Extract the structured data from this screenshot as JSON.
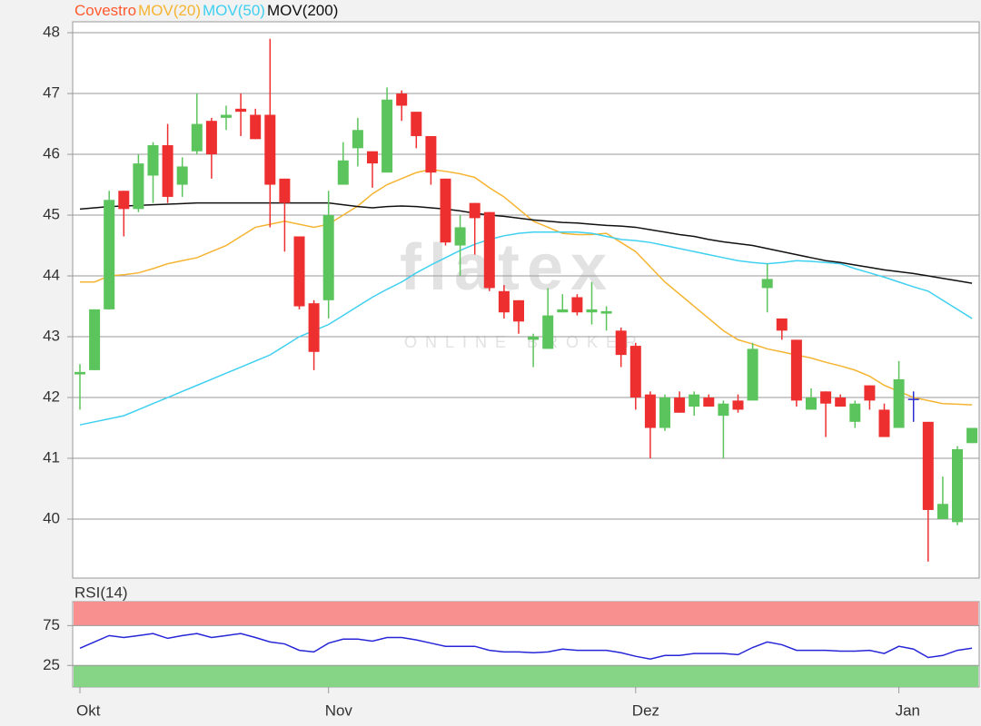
{
  "chart_data": [
    {
      "type": "candlestick",
      "name": "Covestro",
      "name_color": "#ff5a2e",
      "watermark": {
        "title": "flatex",
        "subtitle": "ONLINE BROKER"
      },
      "categories": [
        "Okt",
        null,
        null,
        null,
        null,
        null,
        null,
        null,
        null,
        null,
        null,
        null,
        null,
        null,
        null,
        null,
        null,
        "Nov",
        null,
        null,
        null,
        null,
        null,
        null,
        null,
        null,
        null,
        null,
        null,
        null,
        null,
        null,
        null,
        null,
        null,
        null,
        null,
        null,
        "Dez",
        null,
        null,
        null,
        null,
        null,
        null,
        null,
        null,
        null,
        null,
        null,
        null,
        null,
        null,
        null,
        null,
        null,
        "Jan",
        null,
        null,
        null,
        null,
        null
      ],
      "open": [
        42.38,
        42.45,
        43.45,
        45.4,
        45.1,
        45.65,
        46.15,
        45.5,
        46.05,
        46.55,
        46.6,
        46.75,
        46.65,
        46.65,
        45.6,
        44.65,
        43.55,
        43.6,
        45.5,
        46.1,
        46.05,
        45.7,
        47.0,
        46.7,
        46.3,
        45.6,
        44.5,
        45.2,
        45.05,
        43.75,
        43.6,
        42.95,
        42.8,
        43.4,
        43.65,
        43.4,
        43.38,
        43.1,
        42.85,
        42.05,
        41.5,
        42.0,
        41.85,
        42.0,
        41.7,
        41.95,
        41.95,
        43.8,
        43.3,
        42.95,
        41.8,
        42.1,
        42.0,
        41.6,
        42.2,
        41.8,
        41.5,
        41.98,
        41.6,
        40.0,
        39.95,
        41.25
      ],
      "high": [
        42.55,
        43.45,
        45.4,
        45.4,
        46.0,
        46.2,
        46.5,
        45.95,
        47.0,
        46.6,
        46.8,
        47.0,
        46.75,
        47.9,
        45.6,
        44.65,
        43.6,
        45.4,
        46.2,
        46.6,
        46.05,
        47.1,
        47.05,
        46.7,
        46.3,
        45.6,
        45.0,
        45.2,
        45.05,
        43.85,
        43.6,
        43.05,
        43.8,
        43.7,
        43.7,
        43.9,
        43.5,
        43.15,
        42.9,
        42.1,
        42.05,
        42.1,
        42.1,
        42.05,
        41.95,
        42.05,
        42.9,
        44.2,
        43.3,
        42.95,
        42.15,
        42.1,
        42.05,
        41.95,
        42.2,
        41.9,
        42.6,
        42.1,
        41.6,
        40.7,
        41.2,
        41.5
      ],
      "low": [
        41.8,
        42.45,
        43.45,
        44.65,
        45.05,
        45.2,
        45.2,
        45.3,
        46.0,
        45.6,
        46.4,
        46.3,
        46.25,
        44.8,
        44.4,
        43.45,
        42.45,
        43.3,
        45.5,
        45.8,
        45.45,
        45.7,
        46.55,
        46.1,
        45.5,
        44.5,
        44.0,
        44.35,
        43.75,
        43.3,
        43.05,
        42.5,
        42.8,
        43.4,
        43.35,
        43.2,
        43.1,
        42.5,
        41.8,
        41.0,
        41.45,
        41.75,
        41.7,
        41.85,
        41.0,
        41.75,
        41.95,
        43.4,
        42.95,
        41.85,
        41.8,
        41.35,
        41.85,
        41.5,
        41.8,
        41.35,
        41.5,
        41.6,
        39.3,
        40.0,
        39.9,
        41.25
      ],
      "close": [
        42.42,
        43.45,
        45.25,
        45.1,
        45.85,
        46.15,
        45.3,
        45.8,
        46.5,
        46.0,
        46.65,
        46.7,
        46.25,
        45.5,
        45.2,
        43.5,
        42.75,
        45.0,
        45.9,
        46.4,
        45.85,
        46.9,
        46.8,
        46.3,
        45.7,
        44.55,
        44.8,
        44.95,
        43.8,
        43.4,
        43.25,
        43.0,
        43.35,
        43.45,
        43.4,
        43.45,
        43.42,
        42.7,
        42.0,
        41.5,
        42.0,
        41.75,
        42.05,
        41.85,
        41.9,
        41.8,
        42.8,
        43.95,
        43.1,
        41.95,
        42.0,
        41.9,
        41.85,
        41.9,
        41.95,
        41.35,
        42.3,
        41.98,
        40.15,
        40.25,
        41.15,
        41.5
      ],
      "up_color": "#5cc45c",
      "down_color": "#ee2f2f",
      "doji_color": "#2a2ad0",
      "series": [
        {
          "name": "MOV(20)",
          "color": "#f5b432",
          "values": [
            43.9,
            43.9,
            44.0,
            44.02,
            44.05,
            44.12,
            44.2,
            44.25,
            44.3,
            44.4,
            44.5,
            44.65,
            44.8,
            44.85,
            44.9,
            44.85,
            44.8,
            44.85,
            45.0,
            45.15,
            45.35,
            45.5,
            45.6,
            45.7,
            45.75,
            45.72,
            45.68,
            45.62,
            45.45,
            45.3,
            45.1,
            44.9,
            44.8,
            44.7,
            44.68,
            44.68,
            44.7,
            44.55,
            44.4,
            44.15,
            43.9,
            43.7,
            43.5,
            43.3,
            43.1,
            42.95,
            42.88,
            42.8,
            42.75,
            42.7,
            42.65,
            42.58,
            42.52,
            42.45,
            42.35,
            42.2,
            42.1,
            42.0,
            41.95,
            41.9,
            41.89,
            41.88
          ]
        },
        {
          "name": "MOV(50)",
          "color": "#3fd0f0",
          "values": [
            41.55,
            41.6,
            41.65,
            41.7,
            41.8,
            41.9,
            42.0,
            42.1,
            42.2,
            42.3,
            42.4,
            42.5,
            42.6,
            42.7,
            42.85,
            43.0,
            43.1,
            43.2,
            43.35,
            43.5,
            43.65,
            43.78,
            43.9,
            44.05,
            44.18,
            44.3,
            44.42,
            44.52,
            44.6,
            44.66,
            44.7,
            44.72,
            44.72,
            44.72,
            44.72,
            44.7,
            44.65,
            44.6,
            44.58,
            44.55,
            44.5,
            44.45,
            44.4,
            44.35,
            44.3,
            44.25,
            44.22,
            44.2,
            44.22,
            44.25,
            44.24,
            44.22,
            44.2,
            44.12,
            44.05,
            43.98,
            43.9,
            43.82,
            43.75,
            43.6,
            43.45,
            43.3
          ]
        },
        {
          "name": "MOV(200)",
          "color": "#111111",
          "values": [
            45.1,
            45.12,
            45.14,
            45.15,
            45.16,
            45.17,
            45.18,
            45.19,
            45.2,
            45.2,
            45.2,
            45.2,
            45.2,
            45.2,
            45.2,
            45.2,
            45.2,
            45.2,
            45.17,
            45.14,
            45.12,
            45.14,
            45.15,
            45.14,
            45.12,
            45.1,
            45.07,
            45.03,
            45.0,
            44.98,
            44.95,
            44.92,
            44.9,
            44.88,
            44.87,
            44.85,
            44.83,
            44.82,
            44.8,
            44.76,
            44.72,
            44.68,
            44.65,
            44.6,
            44.56,
            44.53,
            44.5,
            44.45,
            44.4,
            44.35,
            44.3,
            44.25,
            44.22,
            44.18,
            44.14,
            44.1,
            44.07,
            44.04,
            44.0,
            43.96,
            43.92,
            43.88
          ]
        }
      ],
      "ylim": [
        39.03,
        48.18
      ],
      "yticks": [
        40,
        41,
        42,
        43,
        44,
        45,
        46,
        47,
        48
      ],
      "grid": true
    },
    {
      "type": "line",
      "title": "RSI(14)",
      "series": [
        {
          "name": "RSI(14)",
          "color": "#2626d8",
          "values": [
            46.6,
            54.5,
            62.5,
            60,
            62.5,
            65,
            59,
            62.5,
            65,
            60,
            62.5,
            65,
            60,
            54.5,
            52,
            44,
            42,
            53,
            58,
            58,
            55.5,
            60,
            60,
            57,
            53,
            49,
            49,
            49,
            44,
            42,
            42,
            41,
            42,
            45.5,
            44,
            44,
            44,
            41,
            36.5,
            33,
            37.5,
            37.5,
            40,
            40,
            40,
            38.5,
            47.5,
            54.5,
            51,
            44,
            44,
            44,
            43,
            43,
            44,
            40,
            49,
            45.5,
            35,
            37.5,
            44,
            46.6
          ]
        }
      ],
      "bands": [
        {
          "range": [
            75,
            105
          ],
          "color": "#f88a8a"
        },
        {
          "range": [
            -2,
            25
          ],
          "color": "#7fd27f"
        }
      ],
      "ylim": [
        -2,
        105
      ],
      "yticks": [
        25,
        75
      ],
      "grid": true
    }
  ]
}
